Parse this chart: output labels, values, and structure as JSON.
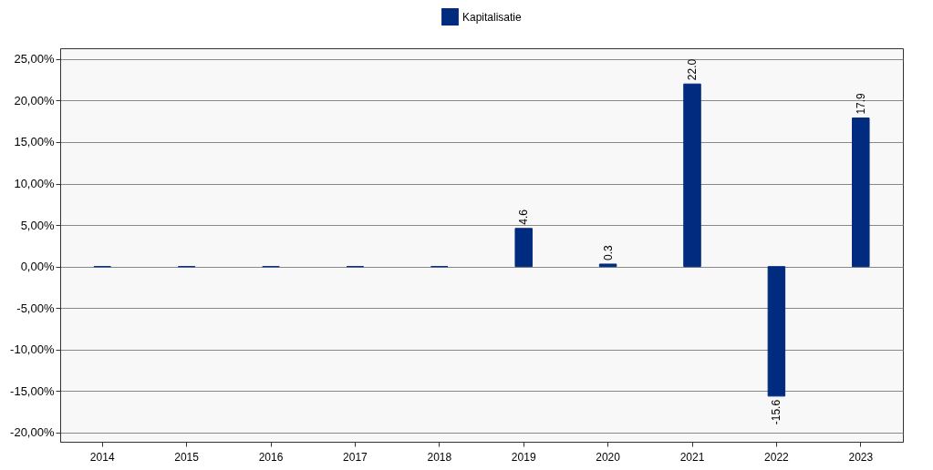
{
  "chart_data": {
    "type": "bar",
    "categories": [
      "2014",
      "2015",
      "2016",
      "2017",
      "2018",
      "2019",
      "2020",
      "2021",
      "2022",
      "2023"
    ],
    "series": [
      {
        "name": "Kapitalisatie",
        "color": "#002b7f",
        "values": [
          0,
          0,
          0,
          0,
          0,
          4.6,
          0.3,
          22.0,
          -15.6,
          17.9
        ]
      }
    ],
    "value_labels": [
      null,
      null,
      null,
      null,
      null,
      "4.6",
      "0.3",
      "22.0",
      "-15.6",
      "17.9"
    ],
    "ylim": [
      -21.1,
      26.3
    ],
    "yticks": [
      {
        "value": -20,
        "label": "-20,00%"
      },
      {
        "value": -15,
        "label": "-15,00%"
      },
      {
        "value": -10,
        "label": "-10,00%"
      },
      {
        "value": -5,
        "label": "-5,00%"
      },
      {
        "value": 0,
        "label": "0,00%"
      },
      {
        "value": 5,
        "label": "5,00%"
      },
      {
        "value": 10,
        "label": "10,00%"
      },
      {
        "value": 15,
        "label": "15,00%"
      },
      {
        "value": 20,
        "label": "20,00%"
      },
      {
        "value": 25,
        "label": "25,00%"
      }
    ],
    "grid": "y",
    "legend": "top"
  }
}
